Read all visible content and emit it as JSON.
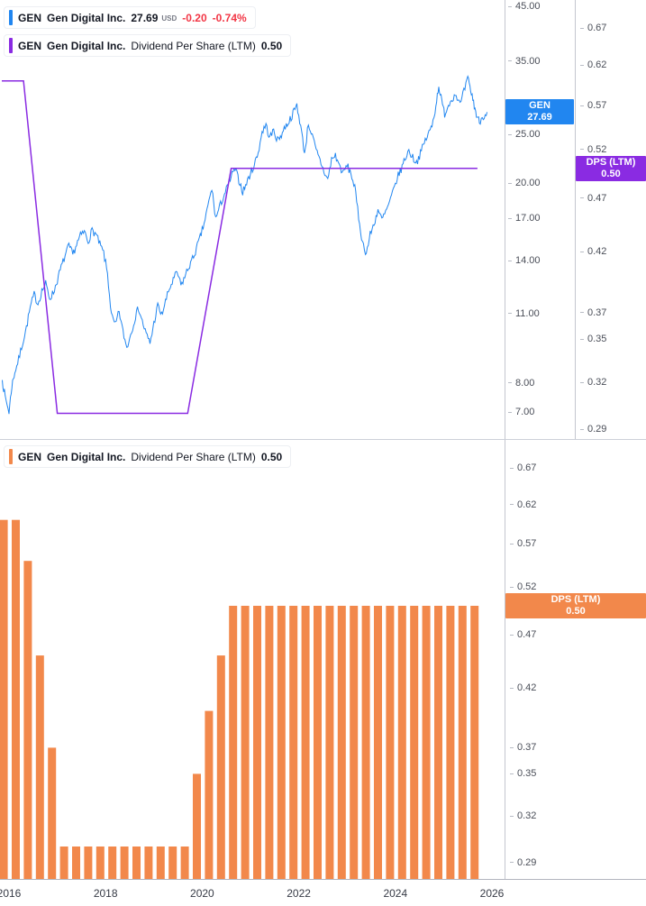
{
  "colors": {
    "price_line": "#2186F0",
    "dps_line": "#8A2BE2",
    "dps_bars": "#F2884B",
    "negative": "#F23645"
  },
  "price_pane": {
    "legend_price_row": {
      "symbol": "GEN",
      "name": "Gen Digital Inc.",
      "price": "27.69",
      "currency": "USD",
      "change": "-0.20",
      "change_pct": "-0.74%"
    },
    "legend_dps_row": {
      "symbol": "GEN",
      "name": "Gen Digital Inc.",
      "metric": "Dividend Per Share (LTM)",
      "value": "0.50"
    },
    "price_axis_ticks": [
      "45.00",
      "35.00",
      "25.00",
      "20.00",
      "17.00",
      "14.00",
      "11.00",
      "8.00",
      "7.00"
    ],
    "dps_axis_ticks": [
      "0.67",
      "0.62",
      "0.57",
      "0.52",
      "0.47",
      "0.42",
      "0.37",
      "0.35",
      "0.32",
      "0.29"
    ],
    "price_badge": {
      "line1": "GEN",
      "line2": "27.69"
    },
    "dps_badge": {
      "line1": "DPS (LTM)",
      "line2": "0.50"
    }
  },
  "dps_pane": {
    "legend_row": {
      "symbol": "GEN",
      "name": "Gen Digital Inc.",
      "metric": "Dividend Per Share (LTM)",
      "value": "0.50"
    },
    "axis_ticks": [
      "0.67",
      "0.62",
      "0.57",
      "0.52",
      "0.47",
      "0.42",
      "0.37",
      "0.35",
      "0.32",
      "0.29"
    ],
    "badge": {
      "line1": "DPS (LTM)",
      "line2": "0.50"
    }
  },
  "time_axis": {
    "labels": [
      "2016",
      "2018",
      "2020",
      "2022",
      "2024",
      "2026"
    ]
  },
  "chart_data": [
    {
      "type": "line",
      "title": "GEN Gen Digital Inc. price with Dividend Per Share (LTM) overlay",
      "x_ticks": [
        2016,
        2018,
        2020,
        2022,
        2024,
        2026
      ],
      "x_range": [
        2015.85,
        2026.3
      ],
      "y_axis_price": {
        "scale": "log",
        "ticks": [
          45,
          35,
          25,
          20,
          17,
          14,
          11,
          8,
          7
        ],
        "last_value": 27.69
      },
      "y_axis_dps": {
        "scale": "log",
        "ticks": [
          0.67,
          0.62,
          0.57,
          0.52,
          0.47,
          0.42,
          0.37,
          0.35,
          0.32,
          0.29
        ],
        "last_value": 0.5
      },
      "series": [
        {
          "name": "GEN price (USD)",
          "axis": "price",
          "color": "#2186F0",
          "points": [
            [
              2015.86,
              8.1
            ],
            [
              2015.92,
              7.5
            ],
            [
              2016.0,
              7.0
            ],
            [
              2016.06,
              7.9
            ],
            [
              2016.12,
              8.4
            ],
            [
              2016.2,
              8.9
            ],
            [
              2016.28,
              9.6
            ],
            [
              2016.36,
              10.3
            ],
            [
              2016.44,
              11.3
            ],
            [
              2016.52,
              12.0
            ],
            [
              2016.6,
              11.5
            ],
            [
              2016.68,
              12.2
            ],
            [
              2016.76,
              12.6
            ],
            [
              2016.84,
              11.8
            ],
            [
              2016.92,
              12.1
            ],
            [
              2017.0,
              12.8
            ],
            [
              2017.08,
              13.6
            ],
            [
              2017.16,
              14.3
            ],
            [
              2017.24,
              15.0
            ],
            [
              2017.32,
              14.4
            ],
            [
              2017.4,
              15.1
            ],
            [
              2017.48,
              15.7
            ],
            [
              2017.56,
              16.0
            ],
            [
              2017.64,
              15.3
            ],
            [
              2017.72,
              16.1
            ],
            [
              2017.8,
              15.8
            ],
            [
              2017.88,
              15.1
            ],
            [
              2017.96,
              14.5
            ],
            [
              2018.04,
              13.2
            ],
            [
              2018.12,
              10.9
            ],
            [
              2018.2,
              10.4
            ],
            [
              2018.28,
              11.1
            ],
            [
              2018.36,
              10.1
            ],
            [
              2018.44,
              9.4
            ],
            [
              2018.52,
              10.0
            ],
            [
              2018.6,
              10.7
            ],
            [
              2018.68,
              11.3
            ],
            [
              2018.76,
              10.6
            ],
            [
              2018.84,
              10.0
            ],
            [
              2018.92,
              9.6
            ],
            [
              2019.0,
              10.5
            ],
            [
              2019.08,
              11.4
            ],
            [
              2019.16,
              10.9
            ],
            [
              2019.24,
              11.6
            ],
            [
              2019.32,
              12.3
            ],
            [
              2019.4,
              12.8
            ],
            [
              2019.48,
              13.3
            ],
            [
              2019.56,
              12.5
            ],
            [
              2019.64,
              13.0
            ],
            [
              2019.72,
              13.6
            ],
            [
              2019.8,
              14.1
            ],
            [
              2019.88,
              14.8
            ],
            [
              2019.96,
              15.6
            ],
            [
              2020.04,
              16.6
            ],
            [
              2020.12,
              18.0
            ],
            [
              2020.2,
              19.5
            ],
            [
              2020.28,
              17.0
            ],
            [
              2020.36,
              17.9
            ],
            [
              2020.44,
              18.8
            ],
            [
              2020.52,
              19.6
            ],
            [
              2020.6,
              20.6
            ],
            [
              2020.68,
              21.3
            ],
            [
              2020.76,
              20.3
            ],
            [
              2020.84,
              19.2
            ],
            [
              2020.92,
              20.0
            ],
            [
              2021.0,
              20.9
            ],
            [
              2021.08,
              21.8
            ],
            [
              2021.16,
              23.0
            ],
            [
              2021.24,
              25.3
            ],
            [
              2021.32,
              26.1
            ],
            [
              2021.4,
              24.6
            ],
            [
              2021.48,
              25.5
            ],
            [
              2021.56,
              24.3
            ],
            [
              2021.64,
              25.0
            ],
            [
              2021.72,
              25.9
            ],
            [
              2021.8,
              26.6
            ],
            [
              2021.88,
              27.5
            ],
            [
              2021.96,
              28.6
            ],
            [
              2022.04,
              26.0
            ],
            [
              2022.12,
              22.9
            ],
            [
              2022.2,
              26.3
            ],
            [
              2022.28,
              24.8
            ],
            [
              2022.36,
              23.2
            ],
            [
              2022.44,
              22.2
            ],
            [
              2022.52,
              21.1
            ],
            [
              2022.6,
              20.3
            ],
            [
              2022.68,
              22.3
            ],
            [
              2022.76,
              22.7
            ],
            [
              2022.84,
              21.7
            ],
            [
              2022.92,
              20.9
            ],
            [
              2023.0,
              21.7
            ],
            [
              2023.08,
              20.9
            ],
            [
              2023.16,
              19.6
            ],
            [
              2023.24,
              17.1
            ],
            [
              2023.32,
              15.2
            ],
            [
              2023.4,
              14.5
            ],
            [
              2023.48,
              15.8
            ],
            [
              2023.56,
              16.6
            ],
            [
              2023.64,
              17.7
            ],
            [
              2023.72,
              16.9
            ],
            [
              2023.8,
              17.5
            ],
            [
              2023.88,
              18.3
            ],
            [
              2023.96,
              19.3
            ],
            [
              2024.04,
              20.5
            ],
            [
              2024.12,
              21.3
            ],
            [
              2024.2,
              22.4
            ],
            [
              2024.28,
              23.2
            ],
            [
              2024.36,
              22.5
            ],
            [
              2024.44,
              22.0
            ],
            [
              2024.52,
              22.9
            ],
            [
              2024.6,
              24.1
            ],
            [
              2024.68,
              25.0
            ],
            [
              2024.76,
              26.0
            ],
            [
              2024.84,
              28.6
            ],
            [
              2024.9,
              31.3
            ],
            [
              2024.96,
              29.0
            ],
            [
              2025.02,
              27.5
            ],
            [
              2025.1,
              28.6
            ],
            [
              2025.18,
              29.6
            ],
            [
              2025.26,
              30.1
            ],
            [
              2025.34,
              28.6
            ],
            [
              2025.42,
              30.4
            ],
            [
              2025.5,
              32.3
            ],
            [
              2025.56,
              30.6
            ],
            [
              2025.62,
              29.0
            ],
            [
              2025.68,
              27.3
            ],
            [
              2025.74,
              26.5
            ],
            [
              2025.82,
              27.2
            ],
            [
              2025.9,
              27.69
            ]
          ]
        },
        {
          "name": "Dividend Per Share (LTM)",
          "axis": "dps",
          "color": "#8A2BE2",
          "points": [
            [
              2015.85,
              0.6
            ],
            [
              2016.3,
              0.6
            ],
            [
              2017.0,
              0.3
            ],
            [
              2019.7,
              0.3
            ],
            [
              2020.6,
              0.5
            ],
            [
              2025.7,
              0.5
            ]
          ]
        }
      ]
    },
    {
      "type": "bar",
      "title": "GEN Dividend Per Share (LTM) by quarter",
      "color": "#F2884B",
      "y_axis": {
        "scale": "log",
        "ticks": [
          0.67,
          0.62,
          0.57,
          0.52,
          0.47,
          0.42,
          0.37,
          0.35,
          0.32,
          0.29
        ],
        "last_value": 0.5
      },
      "points": [
        [
          2015.89,
          0.6
        ],
        [
          2016.14,
          0.6
        ],
        [
          2016.39,
          0.55
        ],
        [
          2016.64,
          0.45
        ],
        [
          2016.89,
          0.37
        ],
        [
          2017.14,
          0.3
        ],
        [
          2017.39,
          0.3
        ],
        [
          2017.64,
          0.3
        ],
        [
          2017.89,
          0.3
        ],
        [
          2018.14,
          0.3
        ],
        [
          2018.39,
          0.3
        ],
        [
          2018.64,
          0.3
        ],
        [
          2018.89,
          0.3
        ],
        [
          2019.14,
          0.3
        ],
        [
          2019.39,
          0.3
        ],
        [
          2019.64,
          0.3
        ],
        [
          2019.89,
          0.35
        ],
        [
          2020.14,
          0.4
        ],
        [
          2020.39,
          0.45
        ],
        [
          2020.64,
          0.5
        ],
        [
          2020.89,
          0.5
        ],
        [
          2021.14,
          0.5
        ],
        [
          2021.39,
          0.5
        ],
        [
          2021.64,
          0.5
        ],
        [
          2021.89,
          0.5
        ],
        [
          2022.14,
          0.5
        ],
        [
          2022.39,
          0.5
        ],
        [
          2022.64,
          0.5
        ],
        [
          2022.89,
          0.5
        ],
        [
          2023.14,
          0.5
        ],
        [
          2023.39,
          0.5
        ],
        [
          2023.64,
          0.5
        ],
        [
          2023.89,
          0.5
        ],
        [
          2024.14,
          0.5
        ],
        [
          2024.39,
          0.5
        ],
        [
          2024.64,
          0.5
        ],
        [
          2024.89,
          0.5
        ],
        [
          2025.14,
          0.5
        ],
        [
          2025.39,
          0.5
        ],
        [
          2025.64,
          0.5
        ]
      ]
    }
  ]
}
